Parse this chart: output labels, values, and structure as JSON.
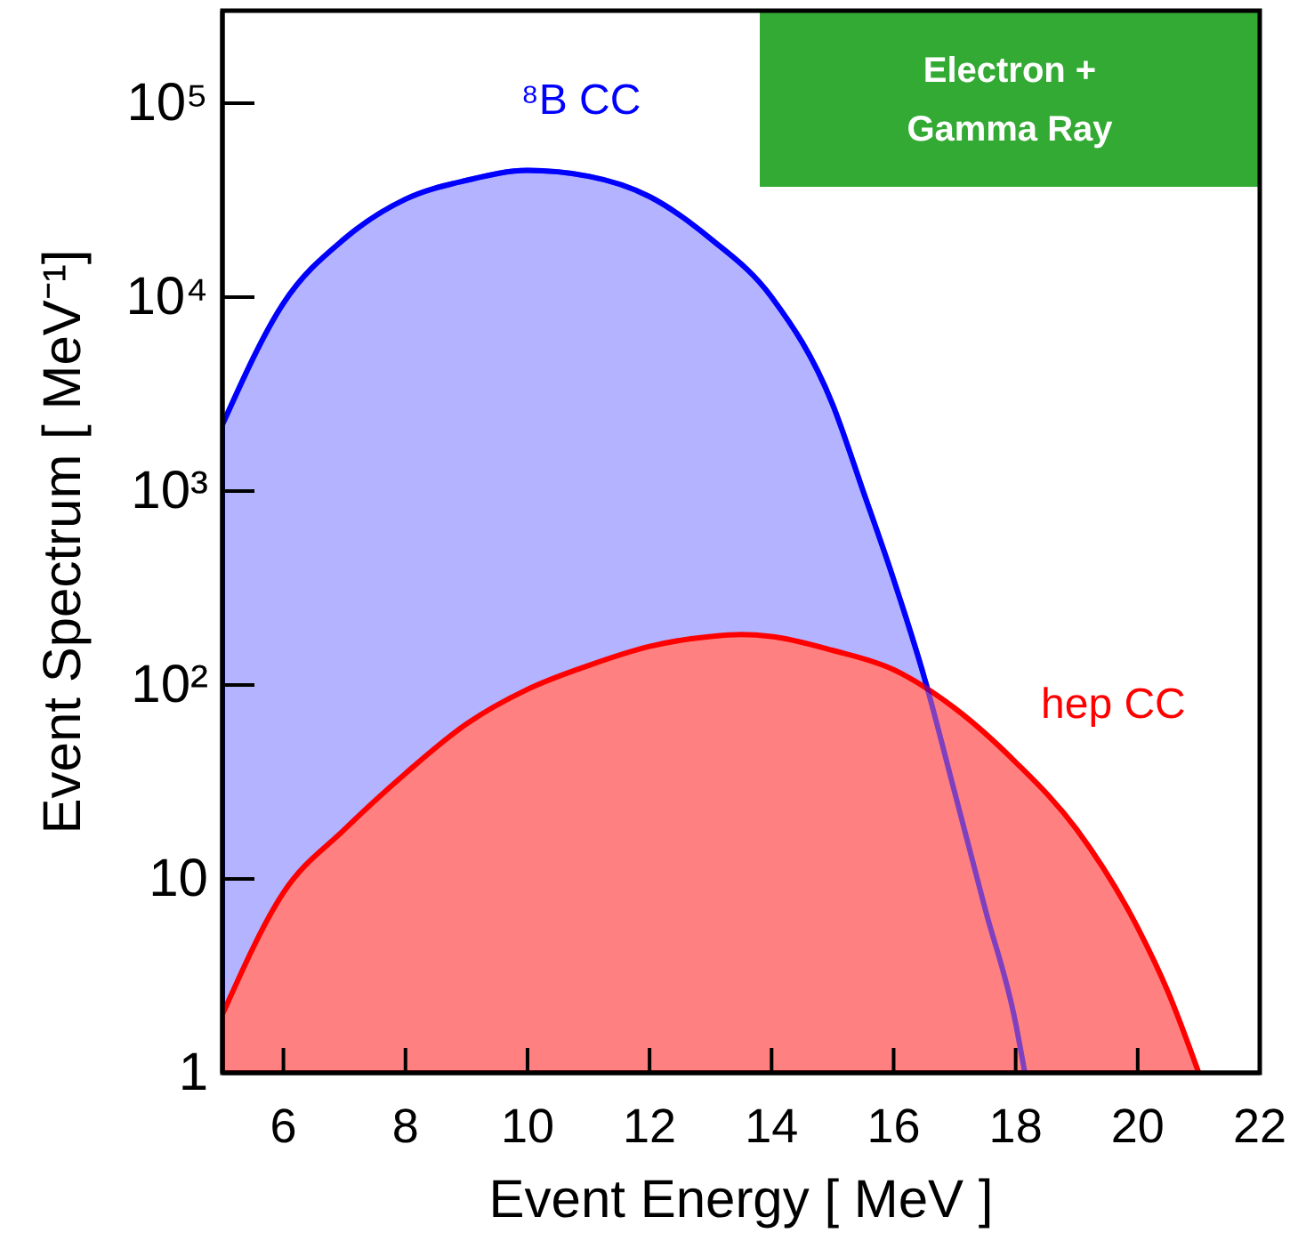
{
  "chart_data": {
    "type": "area",
    "xlabel": "Event Energy [ MeV ]",
    "ylabel": "Event Spectrum [ MeV⁻¹]",
    "log": "y",
    "grid": false,
    "xlim": [
      5,
      22
    ],
    "xticks": [
      6,
      8,
      10,
      12,
      14,
      16,
      18,
      20,
      22
    ],
    "ylim": [
      1,
      300000
    ],
    "yticks": [
      1,
      10,
      {
        "value": 100,
        "label": "10²"
      },
      {
        "value": 1000,
        "label": "10³"
      },
      {
        "value": 10000,
        "label": "10⁴"
      },
      {
        "value": 100000,
        "label": "10⁵"
      }
    ],
    "annotations": [
      "Electron +\nGamma Ray"
    ],
    "series": [
      {
        "name": "⁸B CC",
        "color": "#0000ff",
        "x": [
          5,
          6,
          7,
          8,
          9,
          10,
          11,
          12,
          13,
          14,
          15,
          15.5,
          16,
          16.5,
          17,
          17.5,
          18,
          18.15
        ],
        "values": [
          2200,
          9300,
          20000,
          32000,
          40000,
          45000,
          42000,
          33000,
          20000,
          10000,
          2800,
          1000,
          350,
          110,
          28,
          7,
          1.8,
          1
        ]
      },
      {
        "name": "hep CC",
        "color": "#ff0000",
        "x": [
          5,
          6,
          7,
          8,
          9,
          10,
          11,
          12,
          13,
          13.5,
          14,
          15,
          16,
          17,
          18,
          19,
          20,
          20.5,
          21
        ],
        "values": [
          2,
          8.5,
          18,
          35,
          63,
          95,
          126,
          158,
          178,
          182,
          178,
          151,
          120,
          76,
          40,
          18,
          5.6,
          2.6,
          1
        ]
      }
    ]
  }
}
